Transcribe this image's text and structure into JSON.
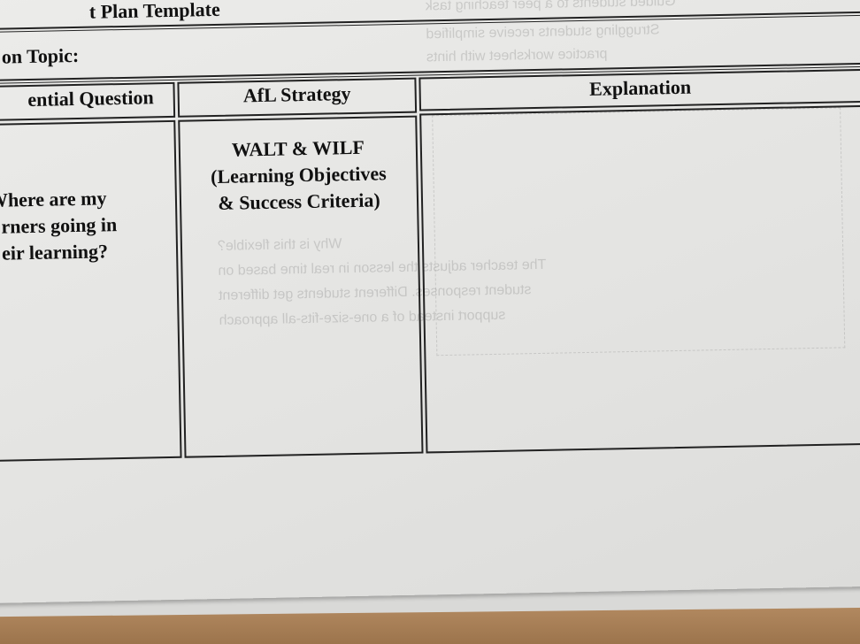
{
  "document": {
    "title_fragment": "t Plan Template",
    "topic_label": "on Topic:",
    "table": {
      "headers": [
        "ential Question",
        "AfL Strategy",
        "Explanation"
      ],
      "rows": [
        {
          "question": [
            "Where are my",
            "rners going in",
            "eir learning?"
          ],
          "strategy": [
            "WALT & WILF",
            "(Learning Objectives",
            "& Success Criteria)"
          ],
          "explanation": ""
        }
      ]
    },
    "show_through": [
      "Guided students to a peer teaching task",
      "Struggling students receive simplified",
      "practice worksheet with hints",
      "Why is this flexible?",
      "The teacher adjusts the lesson in real time based on",
      "student responses. Different students get different",
      "support instead of a one-size-fits-all approach"
    ]
  }
}
